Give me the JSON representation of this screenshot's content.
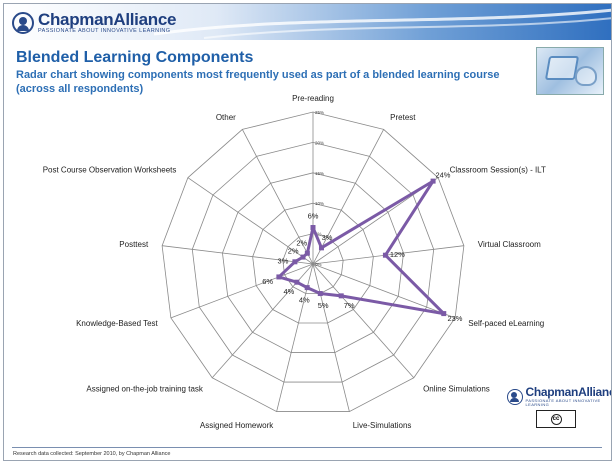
{
  "brand": {
    "name": "ChapmanAlliance",
    "tagline": "PASSIONATE ABOUT INNOVATIVE LEARNING"
  },
  "slide": {
    "title": "Blended Learning Components",
    "subtitle": "Radar chart showing components most frequently used as part of a blended learning course (across all respondents)",
    "footer": "Research data collected: September 2010, by Chapman Alliance",
    "license_badge": "cc"
  },
  "chart_data": {
    "type": "radar",
    "rmax": 25,
    "ticks": [
      "0%",
      "5%",
      "10%",
      "15%",
      "20%",
      "25%"
    ],
    "series_color": "#7b5aa6",
    "grid": true,
    "categories": [
      "Pre-reading",
      "Pretest",
      "Classroom Session(s) - ILT",
      "Virtual Classroom",
      "Self-paced eLearning",
      "Online Simulations",
      "Live-Simulations",
      "Assigned Homework",
      "Assigned on-the-job training task",
      "Knowledge-Based Test",
      "Posttest",
      "Post Course Observation Worksheets",
      "Other"
    ],
    "values": [
      6,
      3,
      24,
      12,
      23,
      7,
      5,
      4,
      4,
      6,
      3,
      2,
      2
    ],
    "value_labels": [
      "6%",
      "3%",
      "24%",
      "12%",
      "23%",
      "7%",
      "5%",
      "4%",
      "4%",
      "6%",
      "3%",
      "2%",
      "2%"
    ]
  }
}
